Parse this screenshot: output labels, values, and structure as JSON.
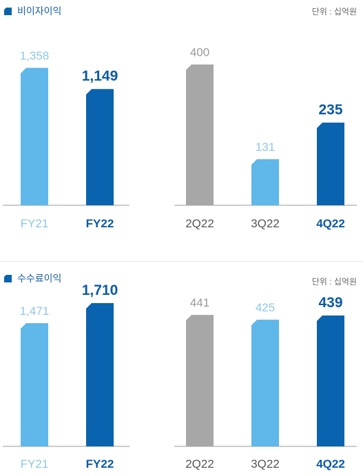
{
  "colors": {
    "light_blue": "#5fb7ea",
    "dark_blue": "#0a63ae",
    "gray": "#a7a7a7",
    "baseline": "#999999",
    "title_icon": "#0a63ae"
  },
  "panels": [
    {
      "title": "비이자이익",
      "unit": "단위 : 십억원",
      "title_icon": "folder-tab-icon"
    },
    {
      "title": "수수료이익",
      "unit": "단위 : 십억원",
      "title_icon": "folder-tab-icon"
    }
  ],
  "chart_data": [
    {
      "type": "bar",
      "title": "비이자이익",
      "unit": "단위 : 십억원",
      "groups": [
        {
          "categories": [
            "FY21",
            "FY22"
          ],
          "values": [
            1358,
            1149
          ],
          "value_labels": [
            "1,358",
            "1,149"
          ],
          "bar_colors": [
            "light_blue",
            "dark_blue"
          ],
          "ylim": [
            0,
            1600
          ]
        },
        {
          "categories": [
            "2Q22",
            "3Q22",
            "4Q22"
          ],
          "values": [
            400,
            131,
            235
          ],
          "value_labels": [
            "400",
            "131",
            "235"
          ],
          "bar_colors": [
            "gray",
            "light_blue",
            "dark_blue"
          ],
          "ylim": [
            0,
            460
          ]
        }
      ]
    },
    {
      "type": "bar",
      "title": "수수료이익",
      "unit": "단위 : 십억원",
      "groups": [
        {
          "categories": [
            "FY21",
            "FY22"
          ],
          "values": [
            1471,
            1710
          ],
          "value_labels": [
            "1,471",
            "1,710"
          ],
          "bar_colors": [
            "light_blue",
            "dark_blue"
          ],
          "ylim": [
            0,
            1850
          ]
        },
        {
          "categories": [
            "2Q22",
            "3Q22",
            "4Q22"
          ],
          "values": [
            441,
            425,
            439
          ],
          "value_labels": [
            "441",
            "425",
            "439"
          ],
          "bar_colors": [
            "gray",
            "light_blue",
            "dark_blue"
          ],
          "ylim": [
            0,
            520
          ]
        }
      ]
    }
  ]
}
